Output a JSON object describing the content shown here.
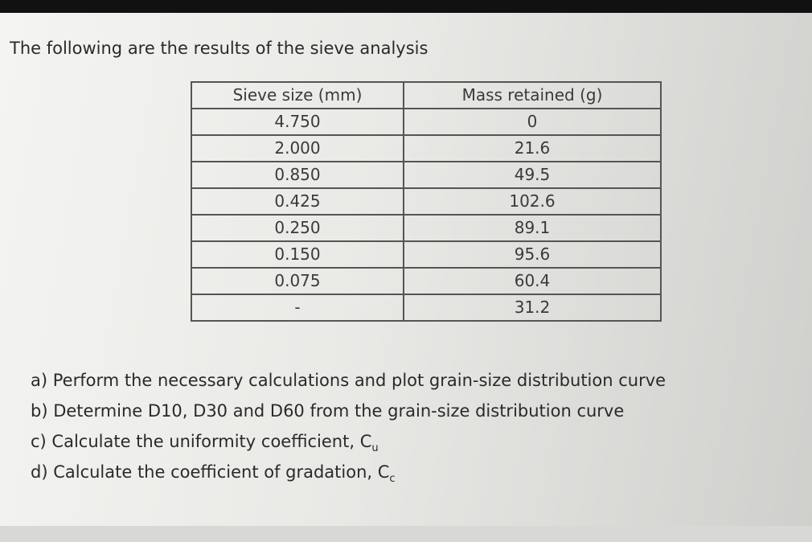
{
  "intro": "The following are the results of the sieve analysis",
  "table": {
    "headers": [
      "Sieve size (mm)",
      "Mass retained (g)"
    ],
    "rows": [
      [
        "4.750",
        "0"
      ],
      [
        "2.000",
        "21.6"
      ],
      [
        "0.850",
        "49.5"
      ],
      [
        "0.425",
        "102.6"
      ],
      [
        "0.250",
        "89.1"
      ],
      [
        "0.150",
        "95.6"
      ],
      [
        "0.075",
        "60.4"
      ],
      [
        "-",
        "31.2"
      ]
    ]
  },
  "questions": [
    {
      "text": "a) Perform the necessary calculations and plot grain-size distribution curve"
    },
    {
      "text": "b) Determine D10, D30 and D60 from the grain-size distribution curve"
    },
    {
      "text": "c) Calculate the uniformity coefficient, C",
      "sub": "u"
    },
    {
      "text": "d) Calculate the coefficient of gradation, C",
      "sub": "c"
    }
  ]
}
